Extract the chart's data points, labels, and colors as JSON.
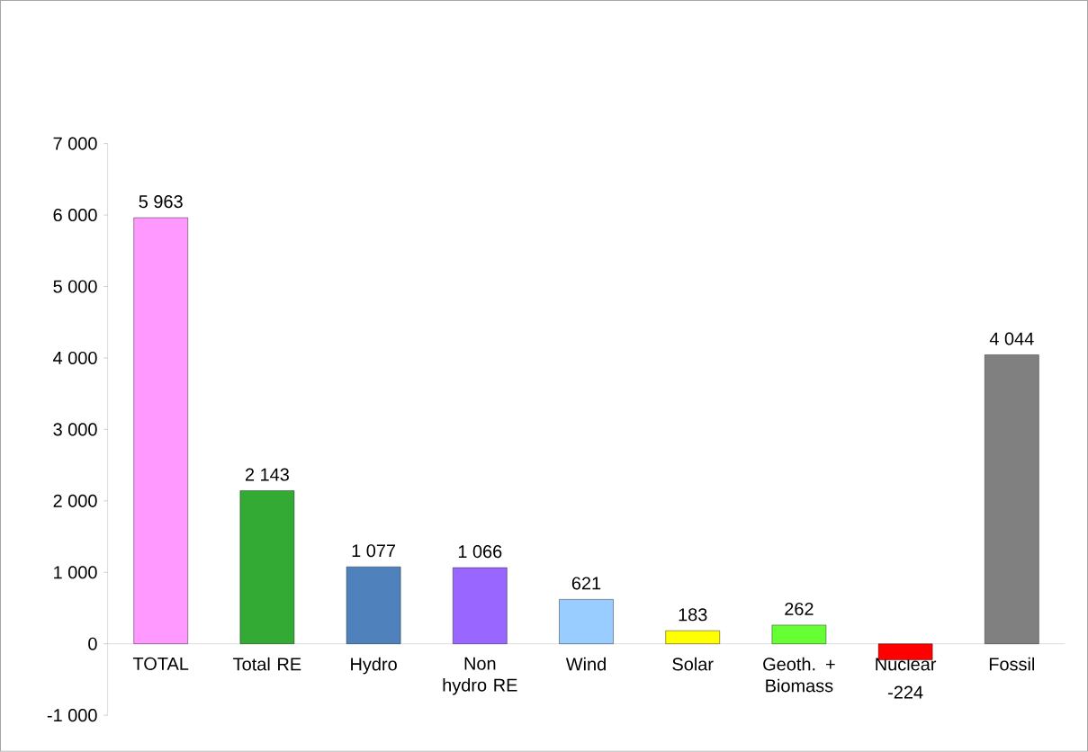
{
  "chart_data": {
    "type": "bar",
    "categories": [
      "TOTAL",
      "Total RE",
      "Hydro",
      "Non hydro RE",
      "Wind",
      "Solar",
      "Geoth. + Biomass",
      "Nuclear",
      "Fossil"
    ],
    "values": [
      5963,
      2143,
      1077,
      1066,
      621,
      183,
      262,
      -224,
      4044
    ],
    "colors": [
      "#ff99ff",
      "#33aa33",
      "#4f81bd",
      "#9966ff",
      "#99ccff",
      "#ffff00",
      "#66ff33",
      "#ff0000",
      "#808080"
    ],
    "value_labels": [
      "5 963",
      "2 143",
      "1 077",
      "1 066",
      "621",
      "183",
      "262",
      "-224",
      "4 044"
    ],
    "ylim": [
      -1000,
      7000
    ],
    "yticks": [
      {
        "value": -1000,
        "label": "-1 000"
      },
      0,
      {
        "value": 1000,
        "label": "1 000"
      },
      {
        "value": 2000,
        "label": "2 000"
      },
      {
        "value": 3000,
        "label": "3 000"
      },
      {
        "value": 4000,
        "label": "4 000"
      },
      {
        "value": 5000,
        "label": "5 000"
      },
      {
        "value": 6000,
        "label": "6 000"
      },
      {
        "value": 7000,
        "label": "7 000"
      }
    ],
    "tick_labels": "xy"
  }
}
